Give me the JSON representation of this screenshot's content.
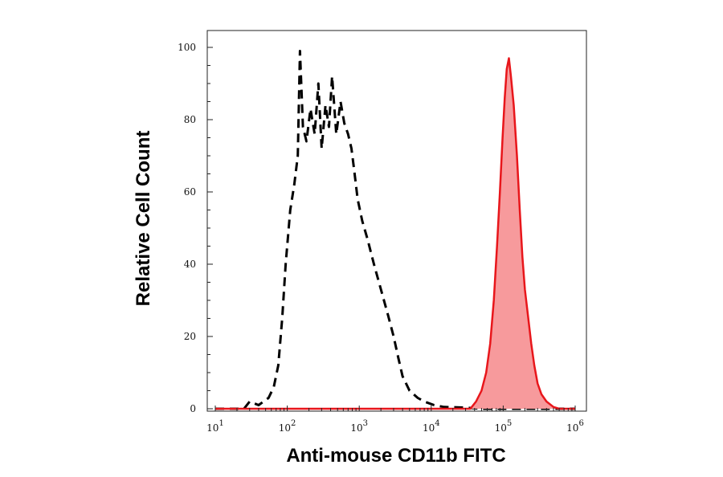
{
  "chart_data": {
    "type": "area",
    "xlabel": "Anti-mouse CD11b FITC",
    "ylabel": "Relative Cell Count",
    "x_scale": "log10",
    "xlim": [
      10,
      1000000
    ],
    "ylim": [
      0,
      100
    ],
    "grid": false,
    "legend": "none",
    "y_ticks": [
      {
        "value": 0,
        "label": "0"
      },
      {
        "value": 20,
        "label": "20"
      },
      {
        "value": 40,
        "label": "40"
      },
      {
        "value": 60,
        "label": "60"
      },
      {
        "value": 80,
        "label": "80"
      },
      {
        "value": 100,
        "label": "100"
      }
    ],
    "x_ticks": [
      {
        "value": 10,
        "base": "10",
        "exp": "1"
      },
      {
        "value": 100,
        "base": "10",
        "exp": "2"
      },
      {
        "value": 1000,
        "base": "10",
        "exp": "3"
      },
      {
        "value": 10000,
        "base": "10",
        "exp": "4"
      },
      {
        "value": 100000,
        "base": "10",
        "exp": "5"
      },
      {
        "value": 1000000,
        "base": "10",
        "exp": "6"
      }
    ],
    "series": [
      {
        "style": "dashed",
        "color": "#000000",
        "fill": false,
        "points": [
          [
            10,
            0
          ],
          [
            25,
            0
          ],
          [
            30,
            2
          ],
          [
            40,
            1
          ],
          [
            55,
            3
          ],
          [
            65,
            6
          ],
          [
            75,
            12
          ],
          [
            85,
            25
          ],
          [
            95,
            40
          ],
          [
            110,
            55
          ],
          [
            125,
            62
          ],
          [
            140,
            70
          ],
          [
            150,
            99
          ],
          [
            165,
            78
          ],
          [
            185,
            74
          ],
          [
            210,
            83
          ],
          [
            240,
            76
          ],
          [
            270,
            90
          ],
          [
            300,
            72
          ],
          [
            340,
            84
          ],
          [
            380,
            78
          ],
          [
            420,
            92
          ],
          [
            480,
            76
          ],
          [
            550,
            85
          ],
          [
            620,
            79
          ],
          [
            700,
            76
          ],
          [
            780,
            72
          ],
          [
            850,
            66
          ],
          [
            950,
            58
          ],
          [
            1100,
            52
          ],
          [
            1300,
            47
          ],
          [
            1600,
            40
          ],
          [
            2000,
            33
          ],
          [
            2500,
            26
          ],
          [
            3000,
            20
          ],
          [
            3500,
            14
          ],
          [
            4000,
            9
          ],
          [
            5000,
            5
          ],
          [
            6500,
            3
          ],
          [
            8000,
            2
          ],
          [
            11000,
            1
          ],
          [
            15000,
            0.5
          ],
          [
            30000,
            0.3
          ],
          [
            50000,
            0
          ],
          [
            1000000,
            0
          ]
        ]
      },
      {
        "style": "solid",
        "color": "#e8161b",
        "fill": true,
        "fill_color": "#f79a9c",
        "points": [
          [
            10,
            0
          ],
          [
            35000,
            0
          ],
          [
            42000,
            2
          ],
          [
            50000,
            5
          ],
          [
            58000,
            10
          ],
          [
            66000,
            18
          ],
          [
            74000,
            30
          ],
          [
            82000,
            45
          ],
          [
            90000,
            60
          ],
          [
            98000,
            75
          ],
          [
            105000,
            86
          ],
          [
            112000,
            94
          ],
          [
            120000,
            97
          ],
          [
            128000,
            92
          ],
          [
            140000,
            84
          ],
          [
            155000,
            70
          ],
          [
            170000,
            55
          ],
          [
            185000,
            42
          ],
          [
            200000,
            33
          ],
          [
            220000,
            26
          ],
          [
            245000,
            18
          ],
          [
            270000,
            12
          ],
          [
            300000,
            7
          ],
          [
            340000,
            4
          ],
          [
            400000,
            2
          ],
          [
            500000,
            0.5
          ],
          [
            600000,
            0
          ],
          [
            1000000,
            0
          ]
        ]
      }
    ]
  }
}
